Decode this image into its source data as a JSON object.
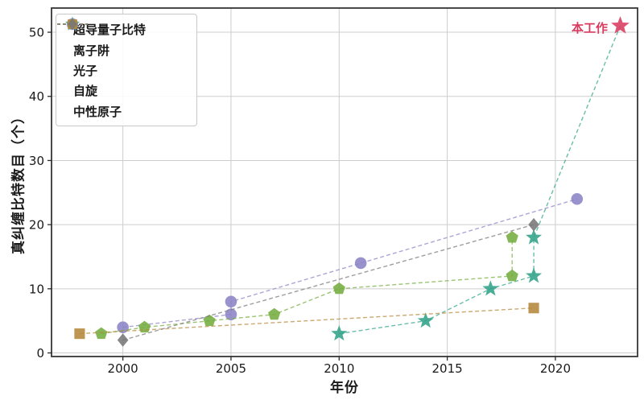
{
  "chart_data": {
    "type": "line",
    "title": "",
    "xlabel": "年份",
    "ylabel": "真纠缠比特数目（个）",
    "xlim": [
      1996.7,
      2023.8
    ],
    "ylim": [
      -0.56,
      53.77
    ],
    "xticks": [
      2000,
      2005,
      2010,
      2015,
      2020
    ],
    "yticks": [
      0,
      10,
      20,
      30,
      40,
      50
    ],
    "grid": true,
    "legend_position": "upper left",
    "annotation": {
      "text": "本工作",
      "color": "#d93a5f",
      "x": 2023,
      "y": 51
    },
    "style": {
      "grid_color": "#cdcdcd",
      "spine_color": "#2b2b2b",
      "text_color": "#1a1a1a",
      "background": "#ffffff"
    },
    "series": [
      {
        "id": "superconducting-qubits",
        "name": "超导量子比特",
        "marker": "star",
        "color": "#31a389",
        "linestyle": "dashed",
        "points": [
          [
            2010,
            3
          ],
          [
            2014,
            5
          ],
          [
            2017,
            10
          ],
          [
            2019,
            12
          ],
          [
            2019,
            18
          ],
          [
            2023,
            51
          ]
        ],
        "highlight_last": {
          "color": "#d93a5f",
          "label": "本工作"
        }
      },
      {
        "id": "ion-trap",
        "name": "离子阱",
        "marker": "circle",
        "color": "#8b84c6",
        "linestyle": "dashed",
        "points": [
          [
            2000,
            4
          ],
          [
            2005,
            6
          ],
          [
            2005,
            8
          ],
          [
            2011,
            14
          ],
          [
            2021,
            24
          ]
        ]
      },
      {
        "id": "photons",
        "name": "光子",
        "marker": "pentagon",
        "color": "#74ad40",
        "linestyle": "dashed",
        "points": [
          [
            1999,
            3
          ],
          [
            2001,
            4
          ],
          [
            2004,
            5
          ],
          [
            2007,
            6
          ],
          [
            2010,
            10
          ],
          [
            2018,
            12
          ],
          [
            2018,
            18
          ]
        ]
      },
      {
        "id": "spin",
        "name": "自旋",
        "marker": "square",
        "color": "#b5883b",
        "linestyle": "dashed",
        "points": [
          [
            1998,
            3
          ],
          [
            2019,
            7
          ]
        ]
      },
      {
        "id": "neutral-atoms",
        "name": "中性原子",
        "marker": "diamond",
        "color": "#787878",
        "linestyle": "dashed",
        "points": [
          [
            2000,
            2
          ],
          [
            2019,
            20
          ]
        ]
      }
    ]
  }
}
